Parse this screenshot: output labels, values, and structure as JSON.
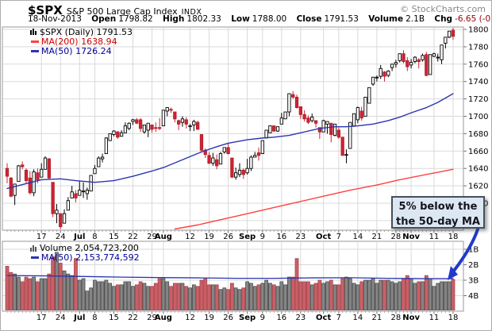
{
  "header": {
    "symbol": "$SPX",
    "index_name": "S&P 500 Large Cap Index",
    "exchange": "INDX",
    "copyright": "© StockCharts.com",
    "date": "18-Nov-2013",
    "open_label": "Open",
    "open": "1798.82",
    "high_label": "High",
    "high": "1802.33",
    "low_label": "Low",
    "low": "1788.00",
    "close_label": "Close",
    "close": "1791.53",
    "volume_label": "Volume",
    "volume": "2.1B",
    "chg_label": "Chg",
    "chg": "-6.65 (-0.37%)",
    "chg_direction_glyph": "▼"
  },
  "price_legend": {
    "instrument": "$SPX (Daily) 1791.53",
    "ma200": "MA(200) 1638.94",
    "ma50": "MA(50) 1726.24"
  },
  "volume_legend": {
    "volume": "Volume 2,054,723,200",
    "ma50": "MA(50) 2,153,774,592"
  },
  "annotation": {
    "line1": "5% below the",
    "line2": "the 50-day MA"
  },
  "colors": {
    "up_fill": "#ffffff",
    "up_stroke": "#000000",
    "down_fill": "#cc2433",
    "down_stroke": "#b51f2d",
    "ma50": "#2b35b0",
    "ma200": "#ff4040",
    "vol_up_fill": "#858585",
    "vol_up_stroke": "#4d4d4d",
    "vol_down_fill": "#ca6067",
    "vol_down_stroke": "#a8444c",
    "grid": "#d9d9d9",
    "pane_border": "#999999",
    "tick": "#777777",
    "axis_text": "#000000",
    "arrow": "#2238cc",
    "chg_text": "#990000",
    "legend_ma200_text": "#cc0000",
    "legend_ma50_text": "#000099",
    "copyright_text": "#888888",
    "annotation_bg": "#dce7f3"
  },
  "chart_data": {
    "type": "candlestick+volume",
    "title": "$SPX (Daily)",
    "price_axis": {
      "ticks": [
        1800,
        1780,
        1760,
        1740,
        1720,
        1700,
        1680,
        1660,
        1640,
        1620,
        1600
      ],
      "grid_extra": [
        1580
      ],
      "position": "right"
    },
    "volume_axis": {
      "ticks": [
        "4B",
        "3B",
        "2B",
        "1B"
      ],
      "values": [
        4,
        3,
        2,
        1
      ]
    },
    "x_labels": [
      {
        "i": 9,
        "t": "17",
        "bold": false
      },
      {
        "i": 14,
        "t": "24",
        "bold": false
      },
      {
        "i": 19,
        "t": "Jul",
        "bold": true
      },
      {
        "i": 23,
        "t": "8",
        "bold": false
      },
      {
        "i": 28,
        "t": "15",
        "bold": false
      },
      {
        "i": 33,
        "t": "22",
        "bold": false
      },
      {
        "i": 38,
        "t": "29",
        "bold": false
      },
      {
        "i": 41,
        "t": "Aug",
        "bold": true
      },
      {
        "i": 48,
        "t": "12",
        "bold": false
      },
      {
        "i": 53,
        "t": "19",
        "bold": false
      },
      {
        "i": 58,
        "t": "26",
        "bold": false
      },
      {
        "i": 63,
        "t": "Sep",
        "bold": true
      },
      {
        "i": 67,
        "t": "9",
        "bold": false
      },
      {
        "i": 72,
        "t": "16",
        "bold": false
      },
      {
        "i": 77,
        "t": "23",
        "bold": false
      },
      {
        "i": 83,
        "t": "Oct",
        "bold": true
      },
      {
        "i": 87,
        "t": "7",
        "bold": false
      },
      {
        "i": 92,
        "t": "14",
        "bold": false
      },
      {
        "i": 97,
        "t": "21",
        "bold": false
      },
      {
        "i": 102,
        "t": "28",
        "bold": false
      },
      {
        "i": 106,
        "t": "Nov",
        "bold": true
      },
      {
        "i": 112,
        "t": "11",
        "bold": false
      },
      {
        "i": 117,
        "t": "18",
        "bold": false
      }
    ],
    "bars": [
      [
        1640,
        1646,
        1623,
        1631,
        2.9
      ],
      [
        1629,
        1630,
        1607,
        1608,
        2.5
      ],
      [
        1609,
        1622,
        1598,
        1622,
        2.4
      ],
      [
        1625,
        1644,
        1625,
        1643,
        2.2
      ],
      [
        1644,
        1648,
        1639,
        1642,
        1.9
      ],
      [
        1638,
        1640,
        1622,
        1626,
        2.2
      ],
      [
        1629,
        1637,
        1610,
        1612,
        2.1
      ],
      [
        1612,
        1639,
        1608,
        1636,
        2.2
      ],
      [
        1635,
        1640,
        1623,
        1627,
        1.9
      ],
      [
        1630,
        1646,
        1630,
        1639,
        2.1
      ],
      [
        1639,
        1654,
        1639,
        1652,
        2.1
      ],
      [
        1651,
        1652,
        1628,
        1629,
        2.4
      ],
      [
        1624,
        1624,
        1584,
        1588,
        3.5
      ],
      [
        1588,
        1599,
        1577,
        1592,
        3.8
      ],
      [
        1588,
        1588,
        1560,
        1573,
        3.1
      ],
      [
        1577,
        1593,
        1577,
        1588,
        2.6
      ],
      [
        1592,
        1607,
        1592,
        1603,
        2.4
      ],
      [
        1606,
        1620,
        1606,
        1613,
        2.3
      ],
      [
        1611,
        1615,
        1601,
        1606,
        3.4
      ],
      [
        1609,
        1626,
        1609,
        1615,
        2.0
      ],
      [
        1614,
        1624,
        1606,
        1614,
        2.1
      ],
      [
        1611,
        1618,
        1604,
        1615,
        1.3
      ],
      [
        1614,
        1632,
        1614,
        1632,
        1.5
      ],
      [
        1634,
        1644,
        1634,
        1640,
        2.0
      ],
      [
        1642,
        1654,
        1642,
        1652,
        1.9
      ],
      [
        1651,
        1657,
        1647,
        1653,
        1.9
      ],
      [
        1657,
        1676,
        1657,
        1675,
        2.0
      ],
      [
        1672,
        1680,
        1672,
        1680,
        1.8
      ],
      [
        1679,
        1684,
        1677,
        1683,
        1.6
      ],
      [
        1682,
        1683,
        1674,
        1676,
        1.7
      ],
      [
        1677,
        1684,
        1677,
        1681,
        1.7
      ],
      [
        1681,
        1693,
        1681,
        1689,
        1.9
      ],
      [
        1686,
        1693,
        1684,
        1692,
        1.9
      ],
      [
        1694,
        1697,
        1690,
        1696,
        1.6
      ],
      [
        1696,
        1698,
        1691,
        1692,
        1.7
      ],
      [
        1696,
        1698,
        1682,
        1686,
        1.9
      ],
      [
        1682,
        1690,
        1680,
        1690,
        1.8
      ],
      [
        1684,
        1692,
        1676,
        1692,
        1.6
      ],
      [
        1690,
        1690,
        1681,
        1685,
        1.6
      ],
      [
        1687,
        1693,
        1682,
        1686,
        1.8
      ],
      [
        1687,
        1698,
        1684,
        1686,
        2.1
      ],
      [
        1689,
        1707,
        1689,
        1707,
        2.1
      ],
      [
        1706,
        1710,
        1700,
        1710,
        1.9
      ],
      [
        1708,
        1710,
        1704,
        1707,
        1.6
      ],
      [
        1705,
        1705,
        1693,
        1697,
        1.8
      ],
      [
        1695,
        1696,
        1684,
        1691,
        1.8
      ],
      [
        1693,
        1700,
        1688,
        1697,
        1.8
      ],
      [
        1696,
        1699,
        1686,
        1691,
        1.6
      ],
      [
        1688,
        1691,
        1683,
        1689,
        1.5
      ],
      [
        1690,
        1696,
        1683,
        1694,
        1.7
      ],
      [
        1693,
        1695,
        1685,
        1685,
        1.6
      ],
      [
        1679,
        1679,
        1658,
        1661,
        2.0
      ],
      [
        1661,
        1663,
        1652,
        1656,
        2.1
      ],
      [
        1655,
        1659,
        1645,
        1646,
        1.7
      ],
      [
        1646,
        1658,
        1643,
        1652,
        1.7
      ],
      [
        1650,
        1656,
        1639,
        1643,
        1.7
      ],
      [
        1645,
        1659,
        1645,
        1657,
        1.4
      ],
      [
        1659,
        1664,
        1657,
        1664,
        1.5
      ],
      [
        1664,
        1669,
        1656,
        1657,
        1.4
      ],
      [
        1652,
        1652,
        1629,
        1630,
        1.8
      ],
      [
        1630,
        1641,
        1627,
        1635,
        1.5
      ],
      [
        1633,
        1646,
        1630,
        1638,
        1.4
      ],
      [
        1638,
        1640,
        1628,
        1633,
        1.5
      ],
      [
        1635,
        1651,
        1633,
        1640,
        1.9
      ],
      [
        1640,
        1655,
        1637,
        1653,
        1.8
      ],
      [
        1653,
        1659,
        1653,
        1655,
        1.6
      ],
      [
        1658,
        1664,
        1649,
        1655,
        1.7
      ],
      [
        1657,
        1672,
        1657,
        1672,
        1.8
      ],
      [
        1675,
        1684,
        1675,
        1684,
        2.0
      ],
      [
        1681,
        1689,
        1681,
        1689,
        1.8
      ],
      [
        1689,
        1689,
        1682,
        1683,
        1.7
      ],
      [
        1683,
        1688,
        1682,
        1688,
        1.6
      ],
      [
        1691,
        1704,
        1691,
        1698,
        1.9
      ],
      [
        1697,
        1705,
        1697,
        1705,
        1.7
      ],
      [
        1705,
        1726,
        1700,
        1726,
        2.2
      ],
      [
        1725,
        1729,
        1720,
        1722,
        2.2
      ],
      [
        1722,
        1725,
        1709,
        1710,
        3.4
      ],
      [
        1711,
        1711,
        1697,
        1702,
        1.9
      ],
      [
        1702,
        1707,
        1694,
        1697,
        1.9
      ],
      [
        1698,
        1701,
        1691,
        1693,
        1.9
      ],
      [
        1695,
        1703,
        1693,
        1699,
        1.7
      ],
      [
        1695,
        1695,
        1687,
        1692,
        1.8
      ],
      [
        1687,
        1687,
        1674,
        1682,
        2.0
      ],
      [
        1682,
        1696,
        1682,
        1695,
        1.8
      ],
      [
        1691,
        1694,
        1680,
        1694,
        1.9
      ],
      [
        1692,
        1692,
        1670,
        1679,
        2.0
      ],
      [
        1678,
        1691,
        1677,
        1691,
        1.7
      ],
      [
        1684,
        1687,
        1674,
        1676,
        1.7
      ],
      [
        1676,
        1676,
        1655,
        1655,
        2.1
      ],
      [
        1656,
        1662,
        1646,
        1656,
        2.2
      ],
      [
        1663,
        1693,
        1663,
        1693,
        2.1
      ],
      [
        1689,
        1703,
        1688,
        1703,
        1.8
      ],
      [
        1696,
        1711,
        1692,
        1710,
        1.7
      ],
      [
        1706,
        1711,
        1695,
        1698,
        1.9
      ],
      [
        1700,
        1722,
        1700,
        1722,
        2.0
      ],
      [
        1715,
        1733,
        1715,
        1733,
        2.0
      ],
      [
        1737,
        1745,
        1735,
        1745,
        2.1
      ],
      [
        1745,
        1747,
        1740,
        1745,
        1.8
      ],
      [
        1746,
        1759,
        1743,
        1755,
        2.0
      ],
      [
        1751,
        1752,
        1740,
        1746,
        2.0
      ],
      [
        1747,
        1753,
        1745,
        1752,
        2.0
      ],
      [
        1756,
        1760,
        1752,
        1760,
        1.9
      ],
      [
        1760,
        1765,
        1756,
        1762,
        1.8
      ],
      [
        1764,
        1772,
        1762,
        1772,
        1.9
      ],
      [
        1772,
        1776,
        1761,
        1763,
        2.1
      ],
      [
        1764,
        1768,
        1752,
        1757,
        2.3
      ],
      [
        1759,
        1766,
        1755,
        1762,
        2.1
      ],
      [
        1763,
        1769,
        1761,
        1768,
        1.8
      ],
      [
        1765,
        1767,
        1755,
        1763,
        1.9
      ],
      [
        1765,
        1772,
        1763,
        1770,
        1.9
      ],
      [
        1771,
        1774,
        1746,
        1747,
        2.3
      ],
      [
        1748,
        1771,
        1748,
        1771,
        2.1
      ],
      [
        1769,
        1773,
        1768,
        1772,
        1.6
      ],
      [
        1768,
        1772,
        1763,
        1768,
        1.8
      ],
      [
        1765,
        1782,
        1760,
        1782,
        1.9
      ],
      [
        1784,
        1791,
        1778,
        1791,
        1.9
      ],
      [
        1791,
        1798,
        1790,
        1798,
        1.9
      ],
      [
        1799,
        1802,
        1788,
        1792,
        2.05
      ]
    ],
    "ma50_price_anchors": [
      [
        0,
        1617
      ],
      [
        9,
        1627
      ],
      [
        14,
        1628
      ],
      [
        18,
        1626
      ],
      [
        23,
        1624
      ],
      [
        28,
        1626
      ],
      [
        33,
        1631
      ],
      [
        38,
        1637
      ],
      [
        41,
        1641
      ],
      [
        46,
        1650
      ],
      [
        51,
        1659
      ],
      [
        55,
        1665
      ],
      [
        58,
        1669
      ],
      [
        63,
        1673
      ],
      [
        67,
        1675
      ],
      [
        70,
        1676
      ],
      [
        74,
        1678
      ],
      [
        77,
        1681
      ],
      [
        82,
        1686
      ],
      [
        86,
        1688
      ],
      [
        89,
        1688
      ],
      [
        92,
        1689
      ],
      [
        96,
        1691
      ],
      [
        100,
        1695
      ],
      [
        103,
        1699
      ],
      [
        106,
        1704
      ],
      [
        110,
        1710
      ],
      [
        113,
        1716
      ],
      [
        117,
        1726
      ]
    ],
    "ma200_price_anchors": [
      [
        44,
        1569
      ],
      [
        50,
        1575
      ],
      [
        56,
        1581
      ],
      [
        63,
        1588
      ],
      [
        70,
        1595
      ],
      [
        77,
        1602
      ],
      [
        83,
        1608
      ],
      [
        90,
        1615
      ],
      [
        97,
        1621
      ],
      [
        103,
        1627
      ],
      [
        110,
        1633
      ],
      [
        117,
        1639
      ]
    ],
    "ma50_volume_anchors": [
      [
        0,
        2.3
      ],
      [
        10,
        2.28
      ],
      [
        20,
        2.24
      ],
      [
        30,
        2.2
      ],
      [
        40,
        2.17
      ],
      [
        50,
        2.15
      ],
      [
        60,
        2.12
      ],
      [
        70,
        2.12
      ],
      [
        80,
        2.15
      ],
      [
        90,
        2.16
      ],
      [
        100,
        2.12
      ],
      [
        110,
        2.1
      ],
      [
        117,
        2.1
      ]
    ]
  }
}
